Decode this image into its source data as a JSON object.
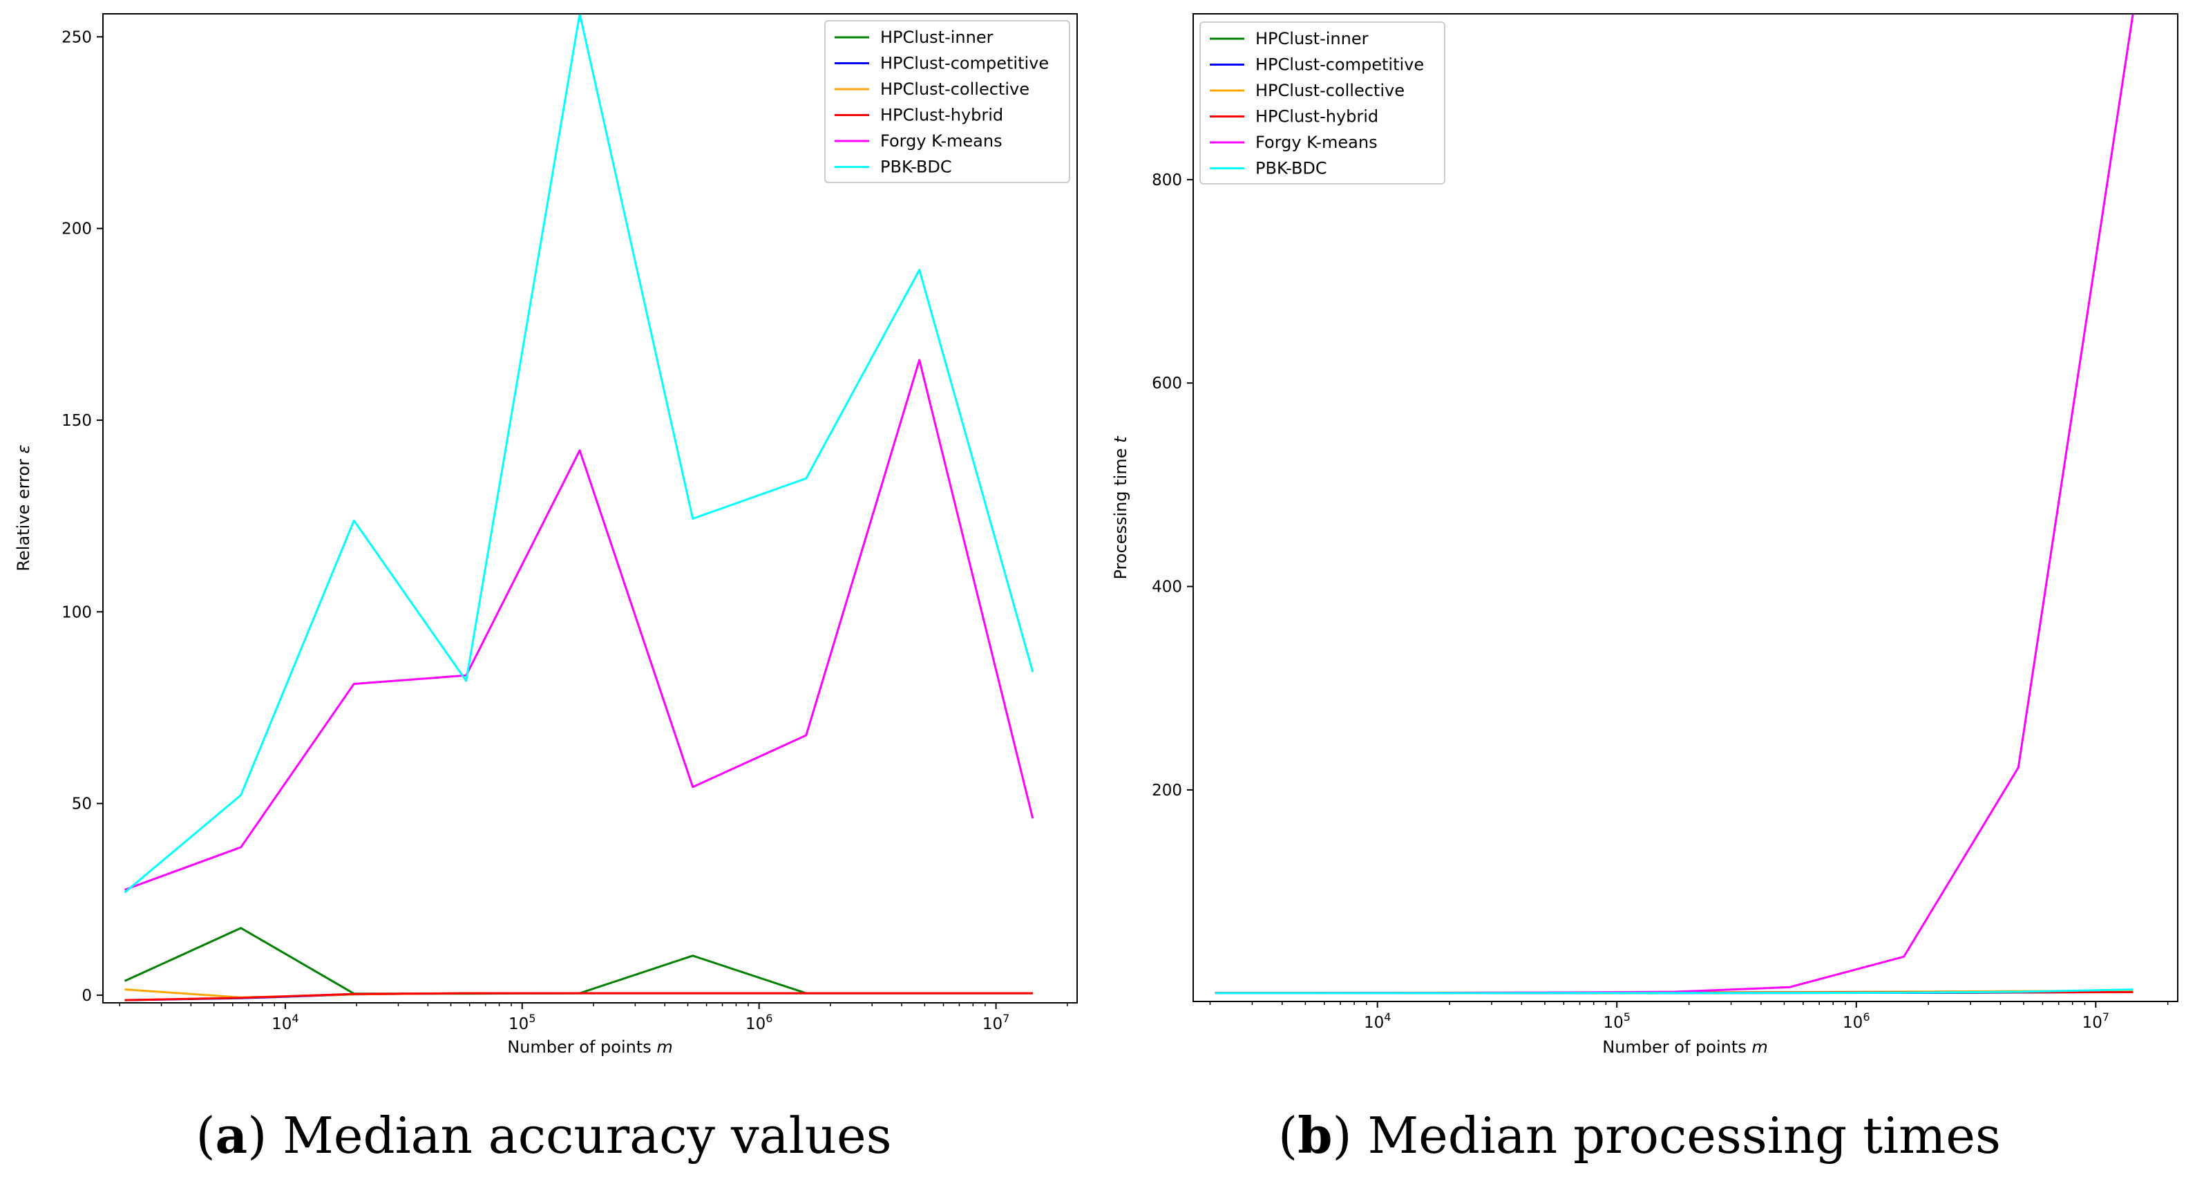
{
  "series_colors": {
    "HPClust-inner": "#008000",
    "HPClust-competitive": "#0000ff",
    "HPClust-collective": "#ffa500",
    "HPClust-hybrid": "#ff0000",
    "Forgy K-means": "#ff00ff",
    "PBK-BDC": "#00ffff"
  },
  "chart_data": [
    {
      "type": "line",
      "xscale": "log",
      "xlabel": "Number of points m",
      "xlabel_text": "Number of points ",
      "xlabel_var": "m",
      "ylabel": "Relative error ε",
      "ylabel_text": "Relative error ",
      "ylabel_var": "ε",
      "xlim": [
        1700,
        22000000
      ],
      "ylim": [
        -2,
        256
      ],
      "xticks": [
        {
          "value": 10000,
          "base": "10",
          "exp": "4"
        },
        {
          "value": 100000,
          "base": "10",
          "exp": "5"
        },
        {
          "value": 1000000,
          "base": "10",
          "exp": "6"
        },
        {
          "value": 10000000,
          "base": "10",
          "exp": "7"
        }
      ],
      "yticks": [
        {
          "value": 0,
          "label": "0"
        },
        {
          "value": 50,
          "label": "50"
        },
        {
          "value": 100,
          "label": "100"
        },
        {
          "value": 150,
          "label": "150"
        },
        {
          "value": 200,
          "label": "200"
        },
        {
          "value": 250,
          "label": "250"
        }
      ],
      "legend_position": "top-right",
      "x": [
        2100,
        6500,
        19500,
        58000,
        175000,
        525000,
        1580000,
        4750000,
        14300000
      ],
      "series": [
        {
          "name": "HPClust-inner",
          "values": [
            3.7,
            17.5,
            0.4,
            0.4,
            0.5,
            10.3,
            0.5,
            0.5,
            0.5
          ]
        },
        {
          "name": "HPClust-competitive",
          "values": [
            -1.3,
            -0.8,
            0.2,
            0.5,
            0.5,
            0.5,
            0.5,
            0.5,
            0.5
          ]
        },
        {
          "name": "HPClust-collective",
          "values": [
            1.5,
            -0.6,
            0.2,
            0.5,
            0.5,
            0.5,
            0.5,
            0.5,
            0.5
          ]
        },
        {
          "name": "HPClust-hybrid",
          "values": [
            -1.3,
            -0.7,
            0.3,
            0.5,
            0.5,
            0.5,
            0.5,
            0.5,
            0.5
          ]
        },
        {
          "name": "Forgy K-means",
          "values": [
            27.5,
            38.6,
            81.2,
            83.4,
            142.1,
            54.3,
            67.8,
            165.7,
            46.1
          ]
        },
        {
          "name": "PBK-BDC",
          "values": [
            26.8,
            52.2,
            123.8,
            82.0,
            256.0,
            124.3,
            134.8,
            189.2,
            84.3
          ]
        }
      ]
    },
    {
      "type": "line",
      "xscale": "log",
      "xlabel": "Number of points m",
      "xlabel_text": "Number of points ",
      "xlabel_var": "m",
      "ylabel": "Processing time t",
      "ylabel_text": "Processing time ",
      "ylabel_var": "t",
      "xlim": [
        1700,
        22000000
      ],
      "ylim": [
        -8,
        963
      ],
      "xticks": [
        {
          "value": 10000,
          "base": "10",
          "exp": "4"
        },
        {
          "value": 100000,
          "base": "10",
          "exp": "5"
        },
        {
          "value": 1000000,
          "base": "10",
          "exp": "6"
        },
        {
          "value": 10000000,
          "base": "10",
          "exp": "7"
        }
      ],
      "yticks": [
        {
          "value": 200,
          "label": "200"
        },
        {
          "value": 400,
          "label": "400"
        },
        {
          "value": 600,
          "label": "600"
        },
        {
          "value": 800,
          "label": "800"
        }
      ],
      "legend_position": "top-left",
      "x": [
        2100,
        6500,
        19500,
        58000,
        175000,
        525000,
        1580000,
        4750000,
        14300000
      ],
      "series": [
        {
          "name": "HPClust-inner",
          "values": [
            0.3,
            0.3,
            0.3,
            0.3,
            0.3,
            0.4,
            0.5,
            0.8,
            1.5
          ]
        },
        {
          "name": "HPClust-competitive",
          "values": [
            0.3,
            0.3,
            0.3,
            0.3,
            0.3,
            0.4,
            0.5,
            0.8,
            1.4
          ]
        },
        {
          "name": "HPClust-collective",
          "values": [
            0.5,
            0.5,
            0.6,
            0.7,
            0.9,
            1.2,
            1.6,
            2.1,
            2.6
          ]
        },
        {
          "name": "HPClust-hybrid",
          "values": [
            0.4,
            0.4,
            0.5,
            0.5,
            0.6,
            0.7,
            0.9,
            1.0,
            1.2
          ]
        },
        {
          "name": "Forgy K-means",
          "values": [
            0.2,
            0.3,
            0.5,
            0.8,
            1.5,
            6.0,
            36.0,
            222.0,
            963.0
          ]
        },
        {
          "name": "PBK-BDC",
          "values": [
            0.2,
            0.2,
            0.2,
            0.3,
            0.3,
            0.4,
            0.6,
            1.5,
            3.7
          ]
        }
      ]
    }
  ],
  "captions": [
    {
      "label": "a",
      "text": "Median accuracy values"
    },
    {
      "label": "b",
      "text": "Median processing times"
    }
  ]
}
